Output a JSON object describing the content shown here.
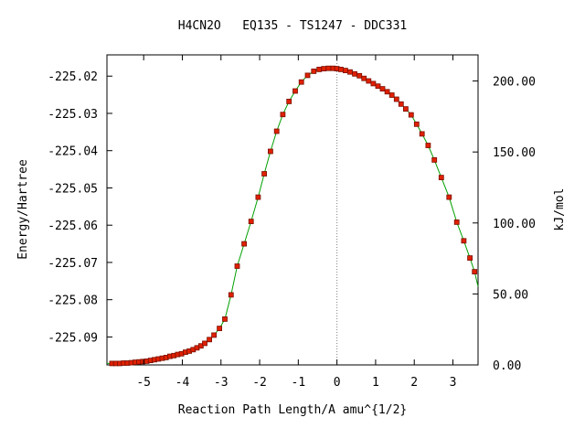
{
  "chart_data": {
    "type": "line",
    "title": "H4CN2O   EQ135 - TS1247 - DDC331",
    "xlabel": "Reaction Path Length/A amu^{1/2}",
    "ylabel": "Energy/Hartree",
    "ylabel_right": "kJ/mol",
    "xlim": [
      -5.95,
      3.65
    ],
    "ylim": [
      -225.0975,
      -225.0143
    ],
    "ylim_right": [
      0.0,
      218.4
    ],
    "x_ticks": [
      "-5",
      "-4",
      "-3",
      "-2",
      "-1",
      "0",
      "1",
      "2",
      "3"
    ],
    "y_ticks": [
      "-225.02",
      "-225.03",
      "-225.04",
      "-225.05",
      "-225.06",
      "-225.07",
      "-225.08",
      "-225.09"
    ],
    "y_ticks_right": [
      "0.00",
      "50.00",
      "100.00",
      "150.00",
      "200.00"
    ],
    "ts_marker_x": 0.0,
    "colors": {
      "curve": "#00a000",
      "marker": "#e02000",
      "marker_edge": "#7a1000",
      "ts_line": "#808080"
    },
    "series": [
      {
        "x": [
          -5.82,
          -5.72,
          -5.62,
          -5.52,
          -5.42,
          -5.32,
          -5.22,
          -5.12,
          -5.02,
          -4.92,
          -4.82,
          -4.72,
          -4.62,
          -4.52,
          -4.42,
          -4.32,
          -4.22,
          -4.12,
          -4.02,
          -3.92,
          -3.82,
          -3.72,
          -3.62,
          -3.52,
          -3.42,
          -3.3,
          -3.18,
          -3.04,
          -2.9,
          -2.74,
          -2.58,
          -2.4,
          -2.22,
          -2.04,
          -1.88,
          -1.72,
          -1.56,
          -1.4,
          -1.24,
          -1.08,
          -0.92,
          -0.76,
          -0.6,
          -0.46,
          -0.34,
          -0.22,
          -0.1,
          0.0,
          0.1,
          0.22,
          0.34,
          0.46,
          0.58,
          0.7,
          0.82,
          0.94,
          1.06,
          1.18,
          1.3,
          1.42,
          1.54,
          1.66,
          1.78,
          1.92,
          2.06,
          2.2,
          2.36,
          2.52,
          2.7,
          2.9,
          3.1,
          3.28,
          3.44,
          3.56
        ],
        "y": [
          -225.0971,
          -225.0971,
          -225.0971,
          -225.097,
          -225.097,
          -225.0969,
          -225.0968,
          -225.0967,
          -225.0966,
          -225.0965,
          -225.0963,
          -225.0961,
          -225.0959,
          -225.0957,
          -225.0955,
          -225.0952,
          -225.095,
          -225.0947,
          -225.0945,
          -225.0941,
          -225.0938,
          -225.0934,
          -225.0929,
          -225.0924,
          -225.0917,
          -225.0907,
          -225.0895,
          -225.0877,
          -225.0852,
          -225.0787,
          -225.071,
          -225.065,
          -225.059,
          -225.0525,
          -225.0462,
          -225.0402,
          -225.0348,
          -225.0303,
          -225.0268,
          -225.024,
          -225.0216,
          -225.0198,
          -225.0187,
          -225.0182,
          -225.018,
          -225.0179,
          -225.0179,
          -225.018,
          -225.0182,
          -225.0185,
          -225.0189,
          -225.0194,
          -225.0199,
          -225.0206,
          -225.0213,
          -225.022,
          -225.0227,
          -225.0234,
          -225.0242,
          -225.0251,
          -225.0262,
          -225.0275,
          -225.0288,
          -225.0304,
          -225.0329,
          -225.0355,
          -225.0386,
          -225.0425,
          -225.0472,
          -225.0525,
          -225.0592,
          -225.0642,
          -225.0688,
          -225.0725
        ]
      }
    ]
  }
}
